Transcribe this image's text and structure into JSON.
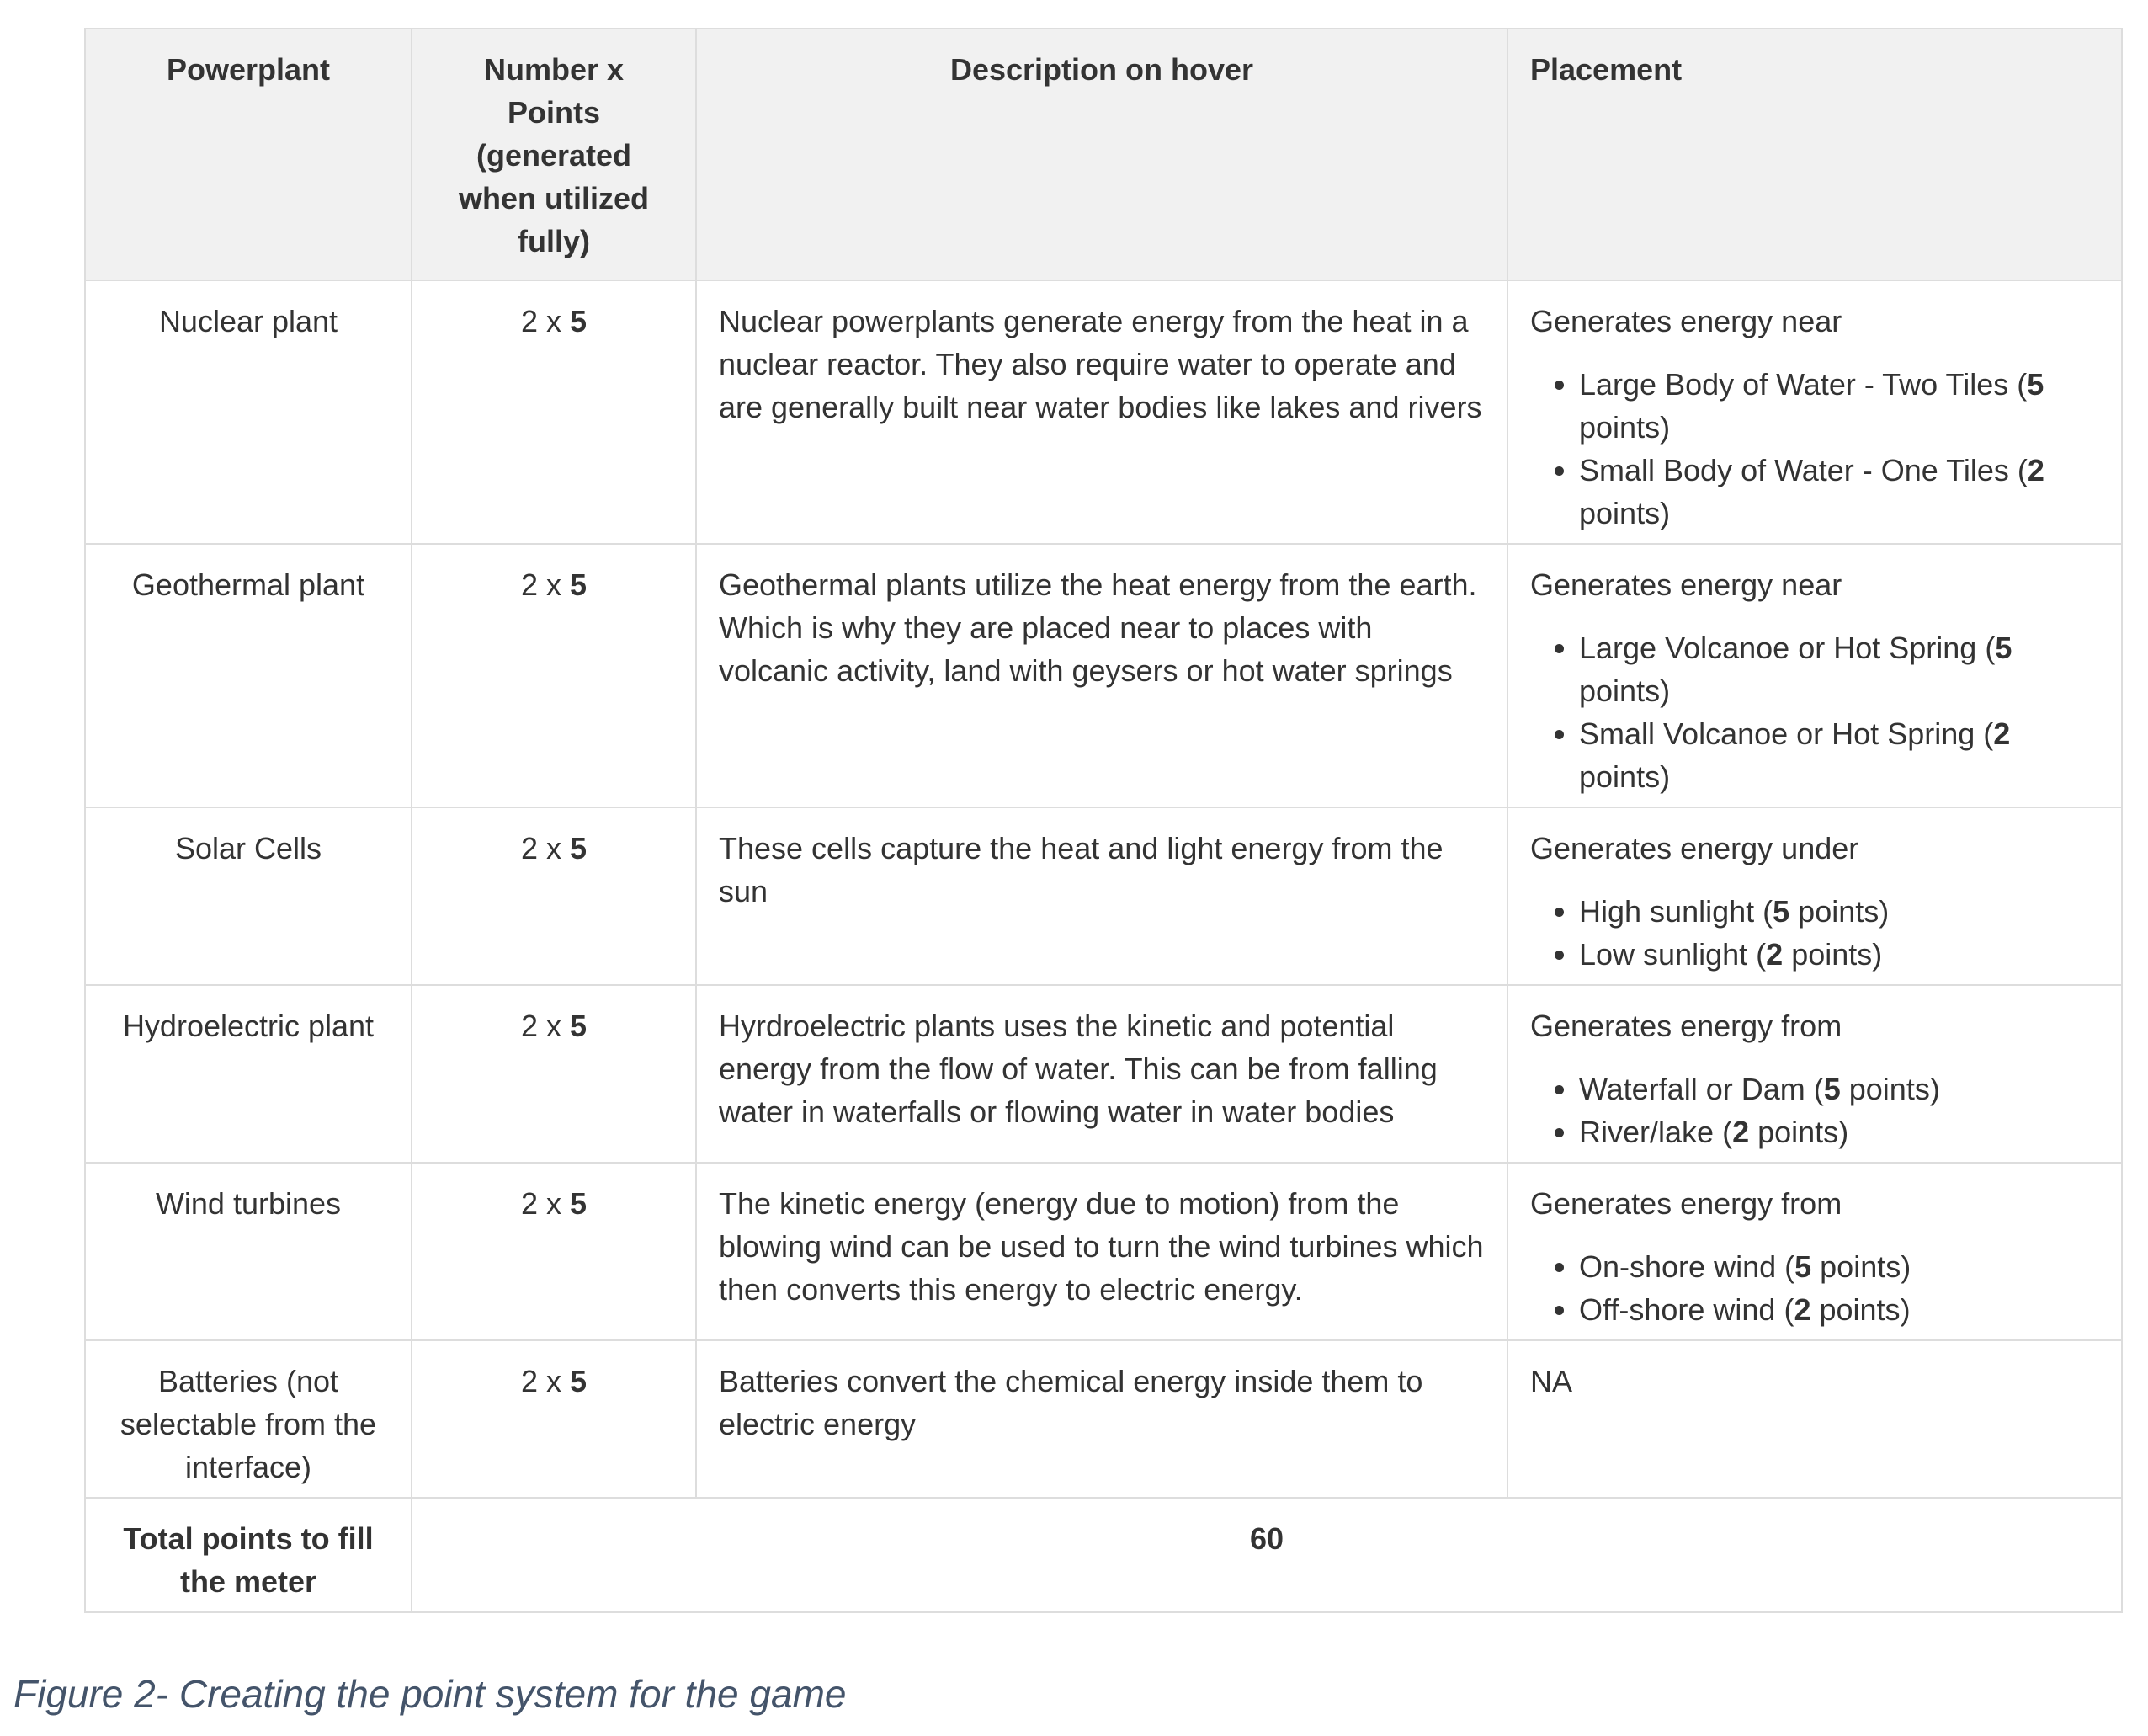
{
  "table": {
    "headers": [
      "Powerplant",
      "Number x Points (generated when utilized fully)",
      "Description on hover",
      "Placement"
    ],
    "rows": [
      {
        "powerplant": "Nuclear plant",
        "number": "2",
        "times": "x",
        "points": "5",
        "description": "Nuclear powerplants generate energy from the heat in a nuclear reactor. They also require water to operate and are generally built near water bodies like lakes and rivers",
        "placement_intro": "Generates energy near",
        "placement_items": [
          {
            "label": "Large Body of Water - Two Tiles",
            "points": "5",
            "unit": "points"
          },
          {
            "label": "Small Body of Water - One Tiles",
            "points": "2",
            "unit": "points"
          }
        ]
      },
      {
        "powerplant": "Geothermal plant",
        "number": "2",
        "times": "x",
        "points": "5",
        "description": "Geothermal plants utilize the heat energy from the earth. Which is why they are placed near to places with volcanic activity, land with geysers or hot water springs",
        "placement_intro": "Generates energy near",
        "placement_items": [
          {
            "label": "Large Volcanoe or Hot Spring",
            "points": "5",
            "unit": "points"
          },
          {
            "label": "Small Volcanoe or Hot Spring",
            "points": "2",
            "unit": "points"
          }
        ]
      },
      {
        "powerplant": "Solar Cells",
        "number": "2",
        "times": "x",
        "points": "5",
        "description": "These cells capture the heat and light energy from the sun",
        "placement_intro": "Generates energy under",
        "placement_items": [
          {
            "label": "High sunlight",
            "points": "5",
            "unit": "points"
          },
          {
            "label": "Low sunlight",
            "points": "2",
            "unit": "points"
          }
        ]
      },
      {
        "powerplant": "Hydroelectric plant",
        "number": "2",
        "times": "x",
        "points": "5",
        "description": "Hyrdroelectric plants uses the kinetic and potential energy from the flow of water. This can be from falling water in waterfalls or flowing water in water bodies",
        "placement_intro": "Generates energy from",
        "placement_items": [
          {
            "label": "Waterfall or Dam",
            "points": "5",
            "unit": "points"
          },
          {
            "label": "River/lake",
            "points": "2",
            "unit": "points"
          }
        ]
      },
      {
        "powerplant": "Wind turbines",
        "number": "2",
        "times": "x",
        "points": "5",
        "description": "The kinetic energy (energy due to motion) from the blowing wind can be used to turn the wind turbines which then converts this energy to electric energy.",
        "placement_intro": "Generates energy from",
        "placement_items": [
          {
            "label": "On-shore wind",
            "points": "5",
            "unit": "points"
          },
          {
            "label": "Off-shore wind",
            "points": "2",
            "unit": "points"
          }
        ]
      },
      {
        "powerplant": "Batteries (not selectable from the interface)",
        "number": "2",
        "times": "x",
        "points": "5",
        "description": "Batteries convert the chemical energy inside them to electric energy",
        "placement_intro": "NA",
        "placement_items": []
      }
    ],
    "total_label": "Total points to fill the meter",
    "total_value": "60"
  },
  "caption": "Figure 2- Creating the point system for the game"
}
